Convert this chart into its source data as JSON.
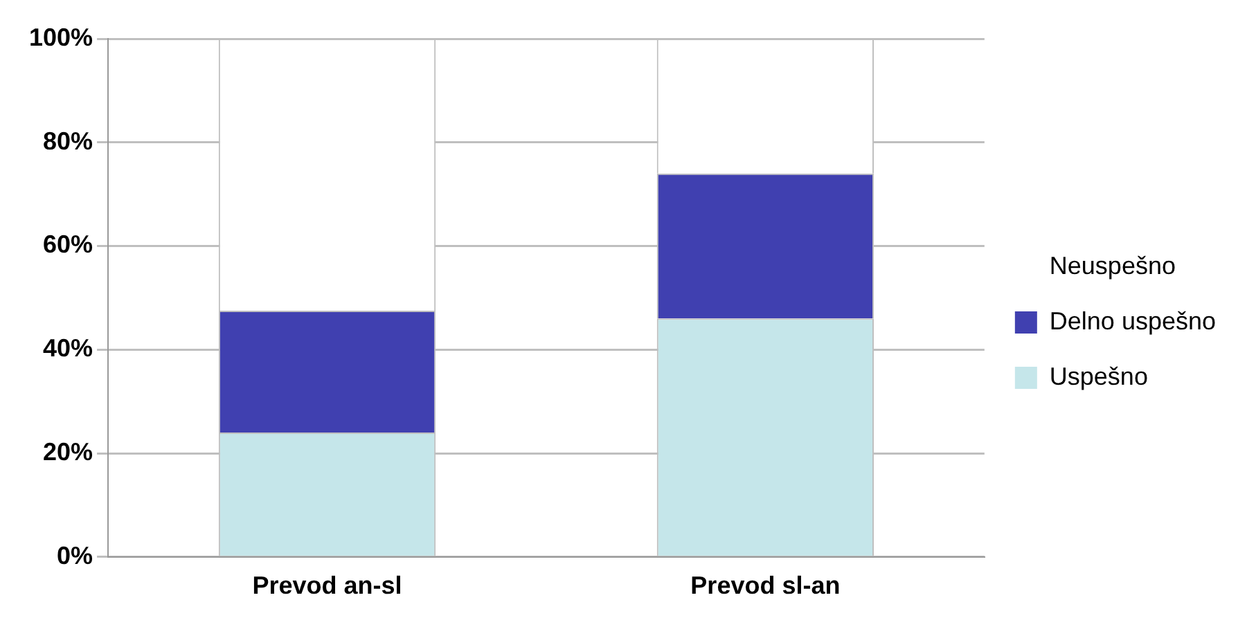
{
  "chart_data": {
    "type": "bar",
    "stacked": true,
    "categories": [
      "Prevod an-sl",
      "Prevod sl-an"
    ],
    "series": [
      {
        "name": "Uspešno",
        "color": "#c5e6ea",
        "values": [
          24,
          46
        ]
      },
      {
        "name": "Delno uspešno",
        "color": "#4040b0",
        "values": [
          23.5,
          28
        ]
      },
      {
        "name": "Neuspešno",
        "color": "#ffffff",
        "values": [
          52.5,
          26
        ]
      }
    ],
    "ylim": [
      0,
      100
    ],
    "yticks": [
      {
        "value": 0,
        "label": "0%"
      },
      {
        "value": 20,
        "label": "20%"
      },
      {
        "value": 40,
        "label": "40%"
      },
      {
        "value": 60,
        "label": "60%"
      },
      {
        "value": 80,
        "label": "80%"
      },
      {
        "value": 100,
        "label": "100%"
      }
    ],
    "grid": "y",
    "legend": "right"
  }
}
